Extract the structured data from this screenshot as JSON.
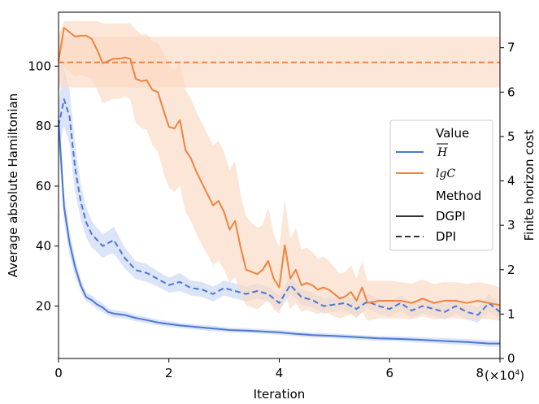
{
  "chart_data": {
    "type": "line",
    "xlabel": "Iteration",
    "ylabel_left": "Average absolute Hamiltonian",
    "ylabel_right": "Finite horizon cost",
    "x_multiplier_label": "(×10",
    "x_multiplier_exp": "4",
    "x_multiplier_close": ")",
    "xlim": [
      0,
      80000
    ],
    "ylim_left": [
      2.5,
      118
    ],
    "ylim_right": [
      0,
      7.8
    ],
    "x_ticks": [
      {
        "value": 0,
        "label": "0"
      },
      {
        "value": 20000,
        "label": "2"
      },
      {
        "value": 40000,
        "label": "4"
      },
      {
        "value": 60000,
        "label": "6"
      },
      {
        "value": 80000,
        "label": "8"
      }
    ],
    "y_left_ticks": [
      {
        "value": 20,
        "label": "20"
      },
      {
        "value": 40,
        "label": "40"
      },
      {
        "value": 60,
        "label": "60"
      },
      {
        "value": 80,
        "label": "80"
      },
      {
        "value": 100,
        "label": "100"
      }
    ],
    "y_right_ticks": [
      {
        "value": 0,
        "label": "0"
      },
      {
        "value": 1,
        "label": "1"
      },
      {
        "value": 2,
        "label": "2"
      },
      {
        "value": 3,
        "label": "3"
      },
      {
        "value": 4,
        "label": "4"
      },
      {
        "value": 5,
        "label": "5"
      },
      {
        "value": 6,
        "label": "6"
      },
      {
        "value": 7,
        "label": "7"
      }
    ],
    "legend": {
      "position": "right",
      "value_title": "Value",
      "value_entries": [
        {
          "label": "H",
          "overline": true,
          "color": "#4a78d6"
        },
        {
          "label": "lgC",
          "overline": false,
          "color": "#ee8440"
        }
      ],
      "method_title": "Method",
      "method_entries": [
        {
          "label": "DGPI",
          "dash": "solid"
        },
        {
          "label": "DPI",
          "dash": "dashed"
        }
      ]
    },
    "series": [
      {
        "axis": "left",
        "color": "#4a78d6",
        "band_color": "#c9d6f3",
        "dash": "solid",
        "x": [
          0,
          1000,
          2000,
          3000,
          4000,
          5000,
          6000,
          7000,
          8000,
          9000,
          10000,
          12000,
          14000,
          16000,
          18000,
          20000,
          22000,
          25000,
          28000,
          31000,
          34000,
          37000,
          40000,
          43000,
          46000,
          50000,
          54000,
          58000,
          62000,
          66000,
          70000,
          74000,
          78000,
          80000
        ],
        "values": [
          82,
          53,
          41,
          33,
          27,
          23,
          22,
          20.5,
          19.5,
          18,
          17.5,
          17,
          16,
          15.3,
          14.5,
          14,
          13.5,
          13,
          12.5,
          12,
          11.8,
          11.5,
          11.2,
          10.7,
          10.3,
          10,
          9.6,
          9.2,
          9,
          8.7,
          8.3,
          8,
          7.5,
          7.5
        ],
        "lower": [
          74,
          48,
          37,
          30,
          25,
          21.5,
          20.5,
          19,
          18,
          16.8,
          16.3,
          15.8,
          14.9,
          14.3,
          13.5,
          13,
          12.6,
          12.1,
          11.6,
          11.2,
          11,
          10.7,
          10.4,
          9.9,
          9.5,
          9.2,
          8.8,
          8.4,
          8.1,
          7.8,
          7.3,
          7,
          6.4,
          6.4
        ],
        "upper": [
          89,
          58,
          45,
          36,
          29,
          24.5,
          23.5,
          22,
          21,
          19.2,
          18.7,
          18.2,
          17.1,
          16.3,
          15.5,
          15,
          14.4,
          13.9,
          13.4,
          12.8,
          12.6,
          12.3,
          12,
          11.5,
          11.1,
          10.8,
          10.4,
          10,
          9.9,
          9.6,
          9.3,
          9,
          8.6,
          8.6
        ]
      },
      {
        "axis": "left",
        "color": "#4a78d6",
        "band_color": "#c9d6f3",
        "dash": "dashed",
        "x": [
          0,
          1000,
          2000,
          3000,
          4000,
          5000,
          6000,
          7000,
          8000,
          9000,
          10000,
          12000,
          14000,
          16000,
          18000,
          20000,
          22000,
          24000,
          26000,
          28000,
          30000,
          32000,
          34000,
          36000,
          38000,
          40000,
          42000,
          44000,
          46000,
          48000,
          50000,
          52000,
          54000,
          56000,
          58000,
          60000,
          62000,
          64000,
          66000,
          68000,
          70000,
          72000,
          74000,
          76000,
          78000,
          80000
        ],
        "values": [
          80,
          89,
          83,
          66,
          55,
          48,
          44,
          42,
          40,
          41,
          42,
          36,
          32,
          31,
          29,
          27,
          28,
          26,
          25.5,
          24,
          26,
          25,
          24,
          25,
          24,
          21,
          27,
          23,
          22,
          20,
          20.5,
          21,
          19,
          21.5,
          20,
          19,
          21,
          18.5,
          20,
          19,
          18,
          20,
          18,
          17,
          21,
          18
        ],
        "lower": [
          72,
          80,
          74,
          58,
          49,
          43,
          39.5,
          38,
          36,
          37,
          37.5,
          32.5,
          29,
          28,
          26.5,
          24.5,
          25,
          23.5,
          23,
          21.5,
          23.5,
          22.5,
          21.5,
          22.5,
          21.5,
          18.5,
          24,
          20.5,
          19.5,
          17.5,
          18,
          18.5,
          16.5,
          19,
          17.5,
          16.5,
          18.5,
          16,
          17.5,
          16.5,
          15.5,
          17.5,
          15.5,
          14.5,
          18,
          15.5
        ],
        "upper": [
          88,
          99,
          92,
          74,
          61,
          53,
          48.5,
          46,
          44,
          45,
          46.5,
          39.5,
          35,
          34,
          31.5,
          29.5,
          31,
          28.5,
          28,
          26.5,
          28.5,
          27.5,
          26.5,
          27.5,
          26.5,
          23.5,
          30,
          25.5,
          24.5,
          22.5,
          23,
          23.5,
          21.5,
          24,
          22.5,
          21.5,
          23.5,
          21,
          22.5,
          21.5,
          20.5,
          22.5,
          20.5,
          19.5,
          24,
          20.5
        ]
      },
      {
        "axis": "right",
        "color": "#ee8440",
        "band_color": "#fbd8c1",
        "dash": "solid",
        "x": [
          0,
          1000,
          2000,
          3000,
          4000,
          5000,
          6000,
          7000,
          8000,
          9000,
          10000,
          11000,
          12000,
          13000,
          14000,
          15000,
          16000,
          17000,
          18000,
          19000,
          20000,
          21000,
          22000,
          23000,
          24000,
          25000,
          26000,
          27000,
          28000,
          29000,
          30000,
          31000,
          32000,
          33000,
          34000,
          35000,
          36000,
          37000,
          38000,
          39000,
          40000,
          41000,
          42000,
          43000,
          44000,
          45000,
          46000,
          47000,
          48000,
          49000,
          50000,
          51000,
          52000,
          53000,
          54000,
          55000,
          56000,
          58000,
          60000,
          62000,
          64000,
          66000,
          68000,
          70000,
          72000,
          74000,
          76000,
          78000,
          80000
        ],
        "values": [
          6.7,
          7.45,
          7.35,
          7.25,
          7.27,
          7.27,
          7.2,
          6.95,
          6.65,
          6.7,
          6.75,
          6.75,
          6.78,
          6.75,
          6.3,
          6.25,
          6.27,
          6.05,
          6.0,
          5.6,
          5.22,
          5.18,
          5.37,
          4.7,
          4.5,
          4.2,
          3.95,
          3.7,
          3.45,
          3.55,
          3.3,
          2.9,
          3.1,
          2.5,
          2.0,
          1.95,
          1.9,
          2.0,
          2.2,
          1.8,
          1.6,
          2.55,
          1.8,
          2.0,
          1.65,
          1.7,
          1.65,
          1.55,
          1.6,
          1.55,
          1.45,
          1.35,
          1.4,
          1.5,
          1.3,
          1.6,
          1.25,
          1.3,
          1.3,
          1.3,
          1.25,
          1.35,
          1.25,
          1.3,
          1.3,
          1.25,
          1.3,
          1.25,
          1.2
        ],
        "lower": [
          6.0,
          6.55,
          6.45,
          6.35,
          6.4,
          6.35,
          6.3,
          6.05,
          5.75,
          5.8,
          5.85,
          5.85,
          5.9,
          5.85,
          5.3,
          5.2,
          5.15,
          4.8,
          4.65,
          4.2,
          3.85,
          3.75,
          3.9,
          3.3,
          3.1,
          2.8,
          2.55,
          2.35,
          2.1,
          2.2,
          2.0,
          1.7,
          1.85,
          1.45,
          1.2,
          1.15,
          1.1,
          1.2,
          1.35,
          1.1,
          1.0,
          1.5,
          1.1,
          1.25,
          1.05,
          1.1,
          1.05,
          1.0,
          1.05,
          1.0,
          0.95,
          0.9,
          0.95,
          1.0,
          0.9,
          1.05,
          0.85,
          0.9,
          0.9,
          0.9,
          0.88,
          0.95,
          0.88,
          0.9,
          0.9,
          0.88,
          0.9,
          0.88,
          0.85
        ],
        "upper": [
          7.3,
          7.6,
          7.6,
          7.6,
          7.6,
          7.6,
          7.6,
          7.6,
          7.55,
          7.55,
          7.55,
          7.55,
          7.55,
          7.55,
          7.4,
          7.3,
          7.3,
          7.15,
          7.1,
          6.9,
          6.6,
          6.5,
          6.65,
          6.05,
          5.85,
          5.55,
          5.3,
          5.05,
          4.8,
          4.9,
          4.65,
          4.25,
          4.45,
          3.7,
          3.2,
          3.05,
          2.95,
          3.0,
          3.4,
          2.8,
          2.5,
          3.6,
          2.7,
          2.95,
          2.45,
          2.5,
          2.4,
          2.25,
          2.3,
          2.2,
          2.05,
          1.9,
          1.95,
          2.1,
          1.8,
          2.2,
          1.75,
          1.75,
          1.75,
          1.72,
          1.68,
          1.78,
          1.68,
          1.72,
          1.72,
          1.68,
          1.72,
          1.68,
          1.6
        ]
      },
      {
        "axis": "right",
        "color": "#ee8440",
        "band_color": "#fbd8c1",
        "dash": "dashed",
        "x": [
          0,
          80000
        ],
        "values": [
          6.67,
          6.67
        ],
        "lower": [
          6.1,
          6.1
        ],
        "upper": [
          7.25,
          7.25
        ]
      }
    ]
  }
}
